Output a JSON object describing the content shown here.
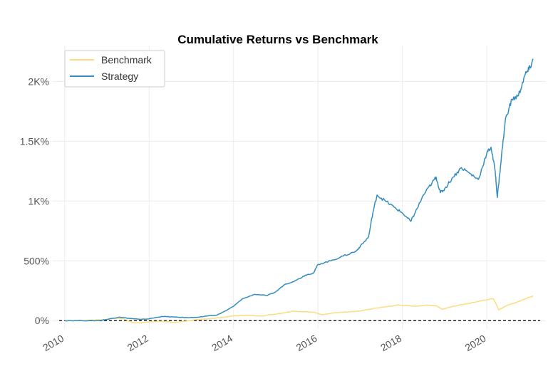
{
  "chart_data": {
    "type": "line",
    "title": "Cumulative Returns vs Benchmark",
    "xlabel": "",
    "ylabel": "",
    "xlim": [
      2009.7,
      2021.4
    ],
    "ylim": [
      -70,
      2300
    ],
    "x_ticks": [
      2010,
      2012,
      2014,
      2016,
      2018,
      2020
    ],
    "x_tick_labels": [
      "2010",
      "2012",
      "2014",
      "2016",
      "2018",
      "2020"
    ],
    "y_ticks": [
      0,
      500,
      1000,
      1500,
      2000
    ],
    "y_tick_labels": [
      "0%",
      "500%",
      "1K%",
      "1.5K%",
      "2K%"
    ],
    "y_unit": "percent",
    "grid": true,
    "legend_position": "top-left",
    "reference_line": {
      "y": 0,
      "style": "dashed",
      "color": "#000000"
    },
    "series": [
      {
        "name": "Benchmark",
        "color": "#fddb80",
        "points": [
          [
            2010.0,
            0
          ],
          [
            2010.5,
            2
          ],
          [
            2010.9,
            8
          ],
          [
            2011.2,
            20
          ],
          [
            2011.4,
            15
          ],
          [
            2011.6,
            -15
          ],
          [
            2011.8,
            -18
          ],
          [
            2012.0,
            -10
          ],
          [
            2012.3,
            -5
          ],
          [
            2012.6,
            -15
          ],
          [
            2012.9,
            -2
          ],
          [
            2013.2,
            10
          ],
          [
            2013.5,
            18
          ],
          [
            2013.8,
            30
          ],
          [
            2014.0,
            40
          ],
          [
            2014.3,
            45
          ],
          [
            2014.6,
            38
          ],
          [
            2014.9,
            50
          ],
          [
            2015.2,
            65
          ],
          [
            2015.4,
            80
          ],
          [
            2015.6,
            75
          ],
          [
            2015.9,
            70
          ],
          [
            2016.1,
            50
          ],
          [
            2016.4,
            65
          ],
          [
            2016.7,
            72
          ],
          [
            2017.0,
            80
          ],
          [
            2017.3,
            100
          ],
          [
            2017.6,
            115
          ],
          [
            2017.9,
            130
          ],
          [
            2018.1,
            128
          ],
          [
            2018.3,
            120
          ],
          [
            2018.6,
            130
          ],
          [
            2018.8,
            125
          ],
          [
            2018.95,
            95
          ],
          [
            2019.2,
            120
          ],
          [
            2019.5,
            140
          ],
          [
            2019.8,
            160
          ],
          [
            2020.0,
            175
          ],
          [
            2020.15,
            185
          ],
          [
            2020.22,
            140
          ],
          [
            2020.28,
            90
          ],
          [
            2020.5,
            130
          ],
          [
            2020.8,
            165
          ],
          [
            2021.0,
            195
          ],
          [
            2021.1,
            205
          ]
        ]
      },
      {
        "name": "Strategy",
        "color": "#348dc1",
        "points": [
          [
            2010.0,
            0
          ],
          [
            2010.4,
            0
          ],
          [
            2010.8,
            0
          ],
          [
            2011.0,
            10
          ],
          [
            2011.3,
            30
          ],
          [
            2011.5,
            20
          ],
          [
            2011.8,
            10
          ],
          [
            2012.0,
            15
          ],
          [
            2012.3,
            35
          ],
          [
            2012.6,
            30
          ],
          [
            2012.9,
            25
          ],
          [
            2013.2,
            30
          ],
          [
            2013.4,
            40
          ],
          [
            2013.6,
            45
          ],
          [
            2013.8,
            80
          ],
          [
            2014.0,
            120
          ],
          [
            2014.2,
            180
          ],
          [
            2014.5,
            220
          ],
          [
            2014.8,
            210
          ],
          [
            2015.0,
            240
          ],
          [
            2015.2,
            300
          ],
          [
            2015.5,
            340
          ],
          [
            2015.7,
            380
          ],
          [
            2015.9,
            400
          ],
          [
            2016.0,
            470
          ],
          [
            2016.3,
            500
          ],
          [
            2016.6,
            540
          ],
          [
            2016.9,
            580
          ],
          [
            2017.0,
            620
          ],
          [
            2017.2,
            700
          ],
          [
            2017.3,
            900
          ],
          [
            2017.4,
            1050
          ],
          [
            2017.6,
            1000
          ],
          [
            2017.8,
            950
          ],
          [
            2018.0,
            900
          ],
          [
            2018.2,
            830
          ],
          [
            2018.3,
            900
          ],
          [
            2018.5,
            1050
          ],
          [
            2018.7,
            1150
          ],
          [
            2018.8,
            1200
          ],
          [
            2018.9,
            1070
          ],
          [
            2019.0,
            1100
          ],
          [
            2019.2,
            1200
          ],
          [
            2019.4,
            1280
          ],
          [
            2019.6,
            1230
          ],
          [
            2019.8,
            1180
          ],
          [
            2020.0,
            1400
          ],
          [
            2020.1,
            1450
          ],
          [
            2020.2,
            1250
          ],
          [
            2020.25,
            1030
          ],
          [
            2020.35,
            1380
          ],
          [
            2020.45,
            1700
          ],
          [
            2020.6,
            1850
          ],
          [
            2020.75,
            1880
          ],
          [
            2020.9,
            2050
          ],
          [
            2021.0,
            2100
          ],
          [
            2021.1,
            2180
          ]
        ]
      }
    ]
  }
}
